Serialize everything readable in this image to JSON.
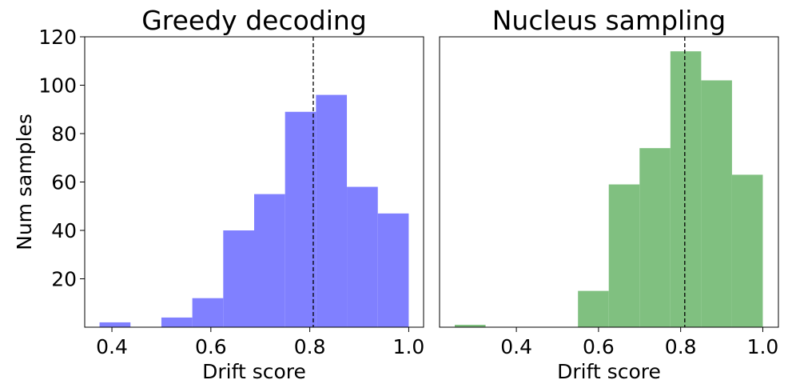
{
  "chart_data": [
    {
      "type": "bar",
      "title": "Greedy decoding",
      "xlabel": "Drift score",
      "ylabel": "Num samples",
      "color": "#8080ff",
      "xlim": [
        0.345,
        1.03
      ],
      "ylim": [
        0,
        120
      ],
      "xticks": [
        0.4,
        0.6,
        0.8,
        1.0
      ],
      "xtick_labels": [
        "0.4",
        "0.6",
        "0.8",
        "1.0"
      ],
      "yticks": [
        20,
        40,
        60,
        80,
        100,
        120
      ],
      "ytick_labels": [
        "20",
        "40",
        "60",
        "80",
        "100",
        "120"
      ],
      "bins": [
        {
          "x0": 0.375,
          "x1": 0.4375,
          "value": 2
        },
        {
          "x0": 0.4375,
          "x1": 0.5,
          "value": 0
        },
        {
          "x0": 0.5,
          "x1": 0.5625,
          "value": 4
        },
        {
          "x0": 0.5625,
          "x1": 0.625,
          "value": 12
        },
        {
          "x0": 0.625,
          "x1": 0.6875,
          "value": 40
        },
        {
          "x0": 0.6875,
          "x1": 0.75,
          "value": 55
        },
        {
          "x0": 0.75,
          "x1": 0.8125,
          "value": 89
        },
        {
          "x0": 0.8125,
          "x1": 0.875,
          "value": 96
        },
        {
          "x0": 0.875,
          "x1": 0.9375,
          "value": 58
        },
        {
          "x0": 0.9375,
          "x1": 1.0,
          "value": 47
        }
      ],
      "mean_line": 0.807
    },
    {
      "type": "bar",
      "title": "Nucleus sampling",
      "xlabel": "Drift score",
      "ylabel": "",
      "color": "#80c080",
      "xlim": [
        0.213,
        1.038
      ],
      "ylim": [
        0,
        120
      ],
      "xticks": [
        0.4,
        0.6,
        0.8,
        1.0
      ],
      "xtick_labels": [
        "0.4",
        "0.6",
        "0.8",
        "1.0"
      ],
      "yticks": [],
      "ytick_labels": [],
      "bins": [
        {
          "x0": 0.25,
          "x1": 0.325,
          "value": 1
        },
        {
          "x0": 0.325,
          "x1": 0.4,
          "value": 0
        },
        {
          "x0": 0.4,
          "x1": 0.475,
          "value": 0
        },
        {
          "x0": 0.475,
          "x1": 0.55,
          "value": 0
        },
        {
          "x0": 0.55,
          "x1": 0.625,
          "value": 15
        },
        {
          "x0": 0.625,
          "x1": 0.7,
          "value": 59
        },
        {
          "x0": 0.7,
          "x1": 0.775,
          "value": 74
        },
        {
          "x0": 0.775,
          "x1": 0.85,
          "value": 114
        },
        {
          "x0": 0.85,
          "x1": 0.925,
          "value": 102
        },
        {
          "x0": 0.925,
          "x1": 1.0,
          "value": 63
        }
      ],
      "mean_line": 0.81
    }
  ]
}
